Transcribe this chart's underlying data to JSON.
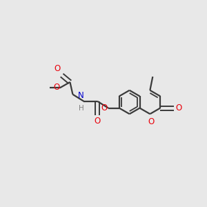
{
  "bg_color": "#e8e8e8",
  "bond_color": "#3a3a3a",
  "o_color": "#e8000a",
  "n_color": "#0000cd",
  "h_color": "#808080",
  "linewidth": 1.6,
  "figsize": [
    3.0,
    3.0
  ],
  "dpi": 100,
  "xlim": [
    0,
    300
  ],
  "ylim": [
    0,
    300
  ]
}
